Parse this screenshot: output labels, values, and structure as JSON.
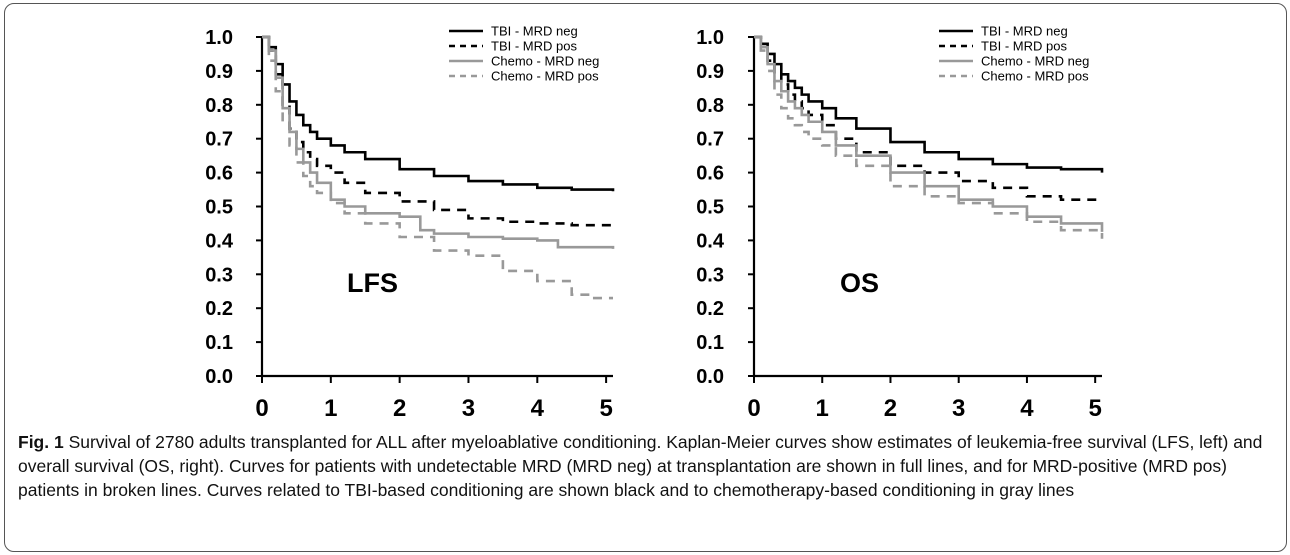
{
  "chart_data": [
    {
      "type": "line",
      "panel_label": "LFS",
      "xlim": [
        0,
        5.1
      ],
      "ylim": [
        0,
        1.0
      ],
      "x_ticks": [
        "0",
        "1",
        "2",
        "3",
        "4",
        "5"
      ],
      "y_ticks": [
        "0.0",
        "0.1",
        "0.2",
        "0.3",
        "0.4",
        "0.5",
        "0.6",
        "0.7",
        "0.8",
        "0.9",
        "1.0"
      ],
      "legend_position": "top-right",
      "series": [
        {
          "name": "TBI - MRD neg",
          "color": "#000000",
          "dash": "solid",
          "x": [
            0,
            0.1,
            0.2,
            0.3,
            0.4,
            0.5,
            0.6,
            0.7,
            0.8,
            1.0,
            1.2,
            1.5,
            2.0,
            2.5,
            3.0,
            3.5,
            4.0,
            4.5,
            5.1
          ],
          "y": [
            1.0,
            0.97,
            0.92,
            0.86,
            0.81,
            0.77,
            0.74,
            0.72,
            0.7,
            0.68,
            0.66,
            0.64,
            0.61,
            0.59,
            0.575,
            0.565,
            0.555,
            0.55,
            0.545
          ]
        },
        {
          "name": "TBI - MRD pos",
          "color": "#000000",
          "dash": "dashed",
          "x": [
            0,
            0.1,
            0.2,
            0.3,
            0.4,
            0.5,
            0.6,
            0.7,
            0.8,
            1.0,
            1.2,
            1.5,
            2.0,
            2.5,
            3.0,
            3.5,
            4.0,
            4.5,
            5.1
          ],
          "y": [
            1.0,
            0.96,
            0.89,
            0.8,
            0.73,
            0.69,
            0.66,
            0.64,
            0.62,
            0.6,
            0.57,
            0.54,
            0.515,
            0.49,
            0.465,
            0.455,
            0.45,
            0.445,
            0.44
          ]
        },
        {
          "name": "Chemo - MRD neg",
          "color": "#999999",
          "dash": "solid",
          "x": [
            0,
            0.1,
            0.2,
            0.3,
            0.4,
            0.5,
            0.6,
            0.7,
            0.8,
            1.0,
            1.2,
            1.5,
            2.0,
            2.3,
            2.5,
            3.0,
            3.5,
            4.0,
            4.3,
            5.1
          ],
          "y": [
            1.0,
            0.96,
            0.88,
            0.79,
            0.72,
            0.67,
            0.63,
            0.6,
            0.57,
            0.52,
            0.5,
            0.48,
            0.47,
            0.43,
            0.42,
            0.41,
            0.405,
            0.4,
            0.38,
            0.375
          ]
        },
        {
          "name": "Chemo - MRD pos",
          "color": "#999999",
          "dash": "dashed",
          "x": [
            0,
            0.1,
            0.2,
            0.3,
            0.4,
            0.5,
            0.6,
            0.7,
            0.8,
            1.0,
            1.2,
            1.5,
            2.0,
            2.5,
            3.0,
            3.5,
            4.0,
            4.5,
            4.8,
            5.1
          ],
          "y": [
            1.0,
            0.93,
            0.84,
            0.75,
            0.68,
            0.63,
            0.59,
            0.56,
            0.54,
            0.51,
            0.48,
            0.45,
            0.41,
            0.37,
            0.355,
            0.31,
            0.28,
            0.24,
            0.23,
            0.23
          ]
        }
      ]
    },
    {
      "type": "line",
      "panel_label": "OS",
      "xlim": [
        0,
        5.1
      ],
      "ylim": [
        0,
        1.0
      ],
      "x_ticks": [
        "0",
        "1",
        "2",
        "3",
        "4",
        "5"
      ],
      "y_ticks": [
        "0.0",
        "0.1",
        "0.2",
        "0.3",
        "0.4",
        "0.5",
        "0.6",
        "0.7",
        "0.8",
        "0.9",
        "1.0"
      ],
      "legend_position": "top-right",
      "series": [
        {
          "name": "TBI - MRD neg",
          "color": "#000000",
          "dash": "solid",
          "x": [
            0,
            0.1,
            0.2,
            0.3,
            0.4,
            0.5,
            0.6,
            0.7,
            0.8,
            1.0,
            1.2,
            1.5,
            2.0,
            2.5,
            3.0,
            3.5,
            4.0,
            4.5,
            5.0,
            5.1
          ],
          "y": [
            1.0,
            0.98,
            0.95,
            0.92,
            0.89,
            0.87,
            0.85,
            0.83,
            0.81,
            0.79,
            0.76,
            0.73,
            0.69,
            0.66,
            0.64,
            0.625,
            0.615,
            0.61,
            0.61,
            0.6
          ]
        },
        {
          "name": "TBI - MRD pos",
          "color": "#000000",
          "dash": "dashed",
          "x": [
            0,
            0.1,
            0.2,
            0.3,
            0.4,
            0.5,
            0.6,
            0.7,
            0.8,
            1.0,
            1.2,
            1.5,
            2.0,
            2.5,
            3.0,
            3.5,
            4.0,
            4.5,
            5.1
          ],
          "y": [
            1.0,
            0.97,
            0.93,
            0.89,
            0.86,
            0.83,
            0.81,
            0.79,
            0.77,
            0.74,
            0.7,
            0.66,
            0.62,
            0.6,
            0.575,
            0.555,
            0.53,
            0.52,
            0.52
          ]
        },
        {
          "name": "Chemo - MRD neg",
          "color": "#999999",
          "dash": "solid",
          "x": [
            0,
            0.1,
            0.2,
            0.3,
            0.4,
            0.5,
            0.6,
            0.7,
            0.8,
            1.0,
            1.2,
            1.5,
            2.0,
            2.5,
            3.0,
            3.5,
            4.0,
            4.5,
            5.1
          ],
          "y": [
            1.0,
            0.97,
            0.92,
            0.87,
            0.84,
            0.81,
            0.79,
            0.77,
            0.75,
            0.72,
            0.68,
            0.65,
            0.6,
            0.56,
            0.52,
            0.5,
            0.47,
            0.45,
            0.425
          ]
        },
        {
          "name": "Chemo - MRD pos",
          "color": "#999999",
          "dash": "dashed",
          "x": [
            0,
            0.1,
            0.2,
            0.3,
            0.4,
            0.5,
            0.6,
            0.7,
            0.8,
            1.0,
            1.2,
            1.5,
            2.0,
            2.5,
            3.0,
            3.5,
            4.0,
            4.5,
            5.1
          ],
          "y": [
            1.0,
            0.96,
            0.9,
            0.83,
            0.79,
            0.76,
            0.74,
            0.72,
            0.7,
            0.68,
            0.65,
            0.62,
            0.56,
            0.53,
            0.51,
            0.48,
            0.455,
            0.43,
            0.405
          ]
        }
      ]
    }
  ],
  "caption": {
    "label": "Fig. 1",
    "text": " Survival of 2780 adults transplanted for ALL after myeloablative conditioning. Kaplan-Meier curves show estimates of leukemia-free survival (LFS, left) and overall survival (OS, right). Curves for patients with undetectable MRD (MRD neg) at transplantation are shown in full lines, and for MRD-positive (MRD pos) patients in broken lines. Curves related to TBI-based conditioning are shown black and to chemotherapy-based conditioning in gray lines"
  }
}
